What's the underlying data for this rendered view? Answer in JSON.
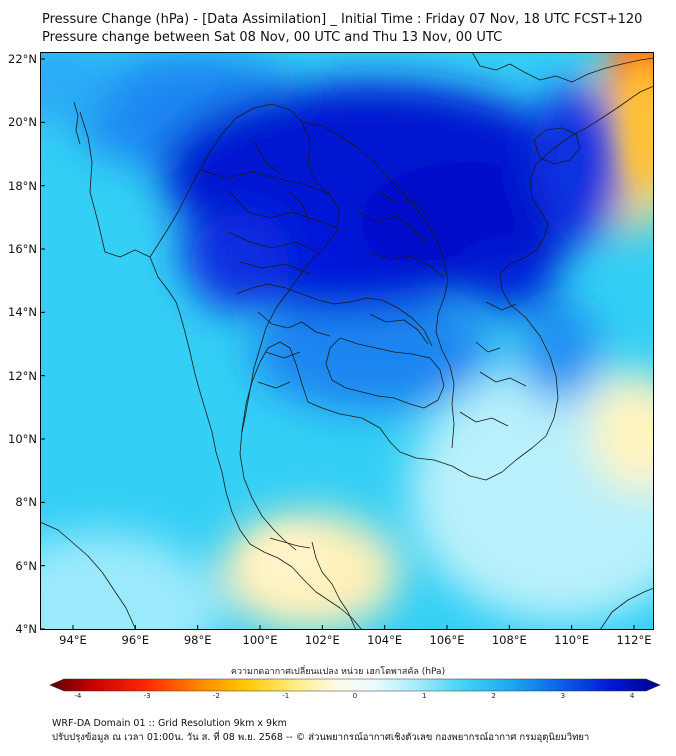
{
  "title_line1": "Pressure Change (hPa) - [Data Assimilation] _ Initial Time : Friday 07 Nov, 18 UTC FCST+120",
  "title_line2": "Pressure change between Sat 08 Nov, 00 UTC and Thu 13 Nov, 00 UTC",
  "lat_labels": [
    "22°N",
    "20°N",
    "18°N",
    "16°N",
    "14°N",
    "12°N",
    "10°N",
    "8°N",
    "6°N",
    "4°N"
  ],
  "lon_labels": [
    "94°E",
    "96°E",
    "98°E",
    "100°E",
    "102°E",
    "104°E",
    "106°E",
    "108°E",
    "110°E",
    "112°E"
  ],
  "colorbar": {
    "label": "ความกดอากาศเปลี่ยนแปลง หน่วย เฮกโตพาสคัล (hPa)",
    "ticks": [
      "-4",
      "-3",
      "-2",
      "-1",
      "0",
      "1",
      "2",
      "3",
      "4"
    ],
    "min": -4.2,
    "max": 4.2
  },
  "footer_line1": "WRF-DA Domain 01 :: Grid Resolution 9km x 9km",
  "footer_line2": "ปรับปรุงข้อมูล ณ เวลา 01:00น. วัน ส. ที่ 08 พ.ย. 2568 -- © ส่วนพยากรณ์อากาศเชิงตัวเลข กองพยากรณ์อากาศ กรมอุตุนิยมวิทยา",
  "colors": {
    "strong_fall": "#0014d8",
    "moderate_fall": "#1a7cf0",
    "weak_fall": "#2fc8f4",
    "slight_fall": "#8ee6fa",
    "neutral": "#fff6c8",
    "slight_rise": "#ffd860",
    "rise": "#ff5a10"
  }
}
